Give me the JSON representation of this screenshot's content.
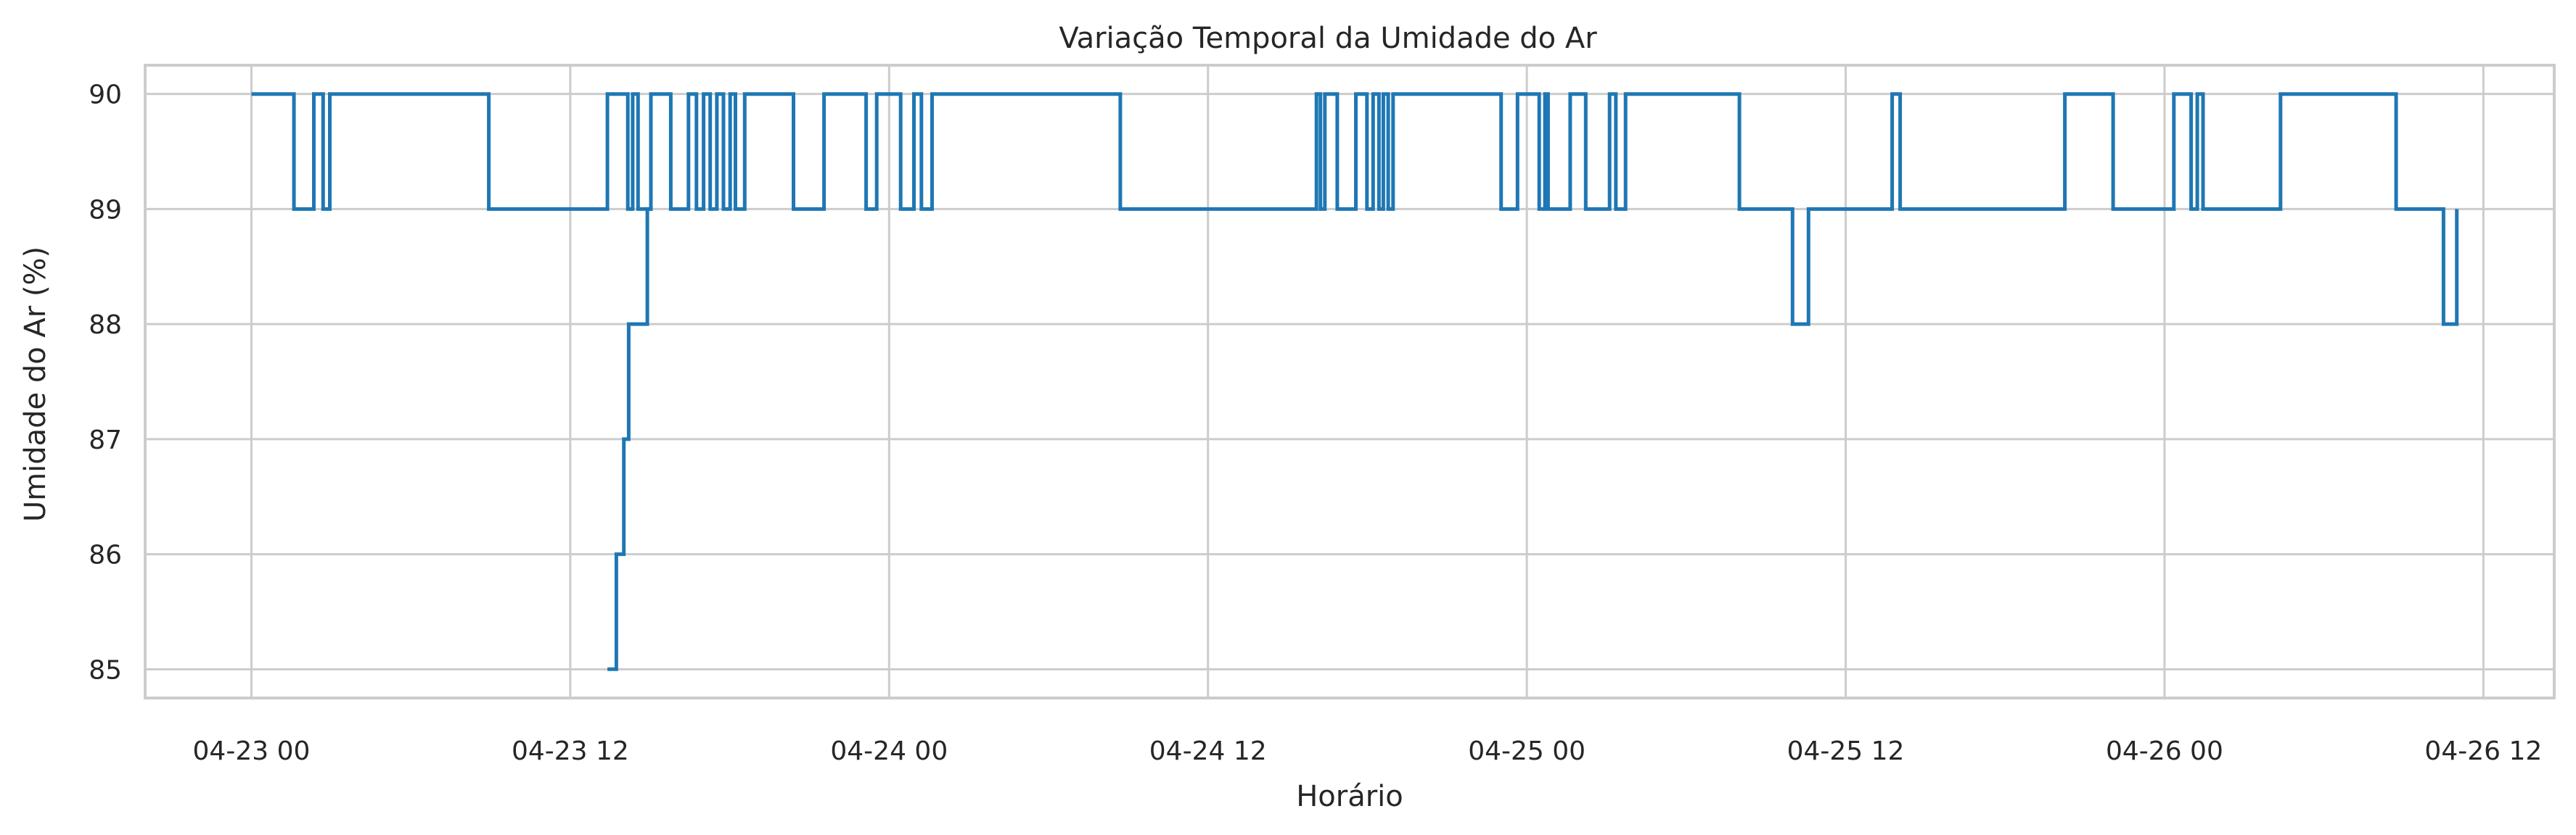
{
  "chart_data": {
    "type": "line",
    "title": "Variação Temporal da Umidade do Ar",
    "xlabel": "Horário",
    "ylabel": "Umidade do Ar (%)",
    "x_tick_labels": [
      "04-23 00",
      "04-23 12",
      "04-24 00",
      "04-24 12",
      "04-25 00",
      "04-25 12",
      "04-26 00",
      "04-26 12"
    ],
    "x_tick_times": [
      "2024-04-23T00:00",
      "2024-04-23T12:00",
      "2024-04-24T00:00",
      "2024-04-24T12:00",
      "2024-04-25T00:00",
      "2024-04-25T12:00",
      "2024-04-26T00:00",
      "2024-04-26T12:00"
    ],
    "y_ticks": [
      85,
      86,
      87,
      88,
      89,
      90
    ],
    "xlim": [
      "2024-04-22T20:00",
      "2024-04-26T14:40"
    ],
    "ylim": [
      84.75,
      90.25
    ],
    "grid": true,
    "color": "#1f77b4",
    "series": [
      {
        "step": "post",
        "points": [
          [
            "2024-04-23T00:00",
            90
          ],
          [
            "2024-04-23T01:36",
            89
          ],
          [
            "2024-04-23T02:21",
            90
          ],
          [
            "2024-04-23T02:42",
            89
          ],
          [
            "2024-04-23T02:57",
            90
          ],
          [
            "2024-04-23T08:56",
            89
          ],
          [
            "2024-04-23T13:24",
            90
          ],
          [
            "2024-04-23T14:10",
            89
          ],
          [
            "2024-04-23T14:21",
            90
          ],
          [
            "2024-04-23T14:33",
            89
          ],
          [
            "2024-04-23T15:02",
            90
          ],
          [
            "2024-04-23T15:47",
            89
          ],
          [
            "2024-04-23T16:27",
            90
          ],
          [
            "2024-04-23T16:45",
            89
          ],
          [
            "2024-04-23T17:01",
            90
          ],
          [
            "2024-04-23T17:16",
            89
          ],
          [
            "2024-04-23T17:31",
            90
          ],
          [
            "2024-04-23T17:46",
            89
          ],
          [
            "2024-04-23T18:01",
            90
          ],
          [
            "2024-04-23T18:13",
            89
          ],
          [
            "2024-04-23T18:34",
            90
          ],
          [
            "2024-04-23T20:24",
            89
          ],
          [
            "2024-04-23T21:33",
            90
          ],
          [
            "2024-04-23T23:08",
            89
          ],
          [
            "2024-04-23T23:32",
            90
          ],
          [
            "2024-04-24T00:26",
            89
          ],
          [
            "2024-04-24T00:56",
            90
          ],
          [
            "2024-04-24T01:13",
            89
          ],
          [
            "2024-04-24T01:37",
            90
          ],
          [
            "2024-04-24T08:42",
            89
          ],
          [
            "2024-04-24T16:05",
            90
          ],
          [
            "2024-04-24T16:14",
            89
          ],
          [
            "2024-04-24T16:24",
            90
          ],
          [
            "2024-04-24T16:52",
            89
          ],
          [
            "2024-04-24T17:34",
            90
          ],
          [
            "2024-04-24T17:59",
            89
          ],
          [
            "2024-04-24T18:13",
            90
          ],
          [
            "2024-04-24T18:26",
            89
          ],
          [
            "2024-04-24T18:36",
            90
          ],
          [
            "2024-04-24T18:47",
            89
          ],
          [
            "2024-04-24T18:58",
            90
          ],
          [
            "2024-04-24T23:02",
            89
          ],
          [
            "2024-04-24T23:39",
            90
          ],
          [
            "2024-04-25T00:28",
            89
          ],
          [
            "2024-04-25T00:41",
            90
          ],
          [
            "2024-04-25T00:48",
            89
          ],
          [
            "2024-04-25T01:38",
            90
          ],
          [
            "2024-04-25T02:13",
            89
          ],
          [
            "2024-04-25T03:07",
            90
          ],
          [
            "2024-04-25T03:21",
            89
          ],
          [
            "2024-04-25T03:43",
            90
          ],
          [
            "2024-04-25T08:00",
            89
          ],
          [
            "2024-04-25T10:00",
            88
          ],
          [
            "2024-04-25T10:36",
            89
          ],
          [
            "2024-04-25T13:45",
            90
          ],
          [
            "2024-04-25T14:03",
            89
          ],
          [
            "2024-04-25T20:15",
            90
          ],
          [
            "2024-04-25T22:04",
            89
          ],
          [
            "2024-04-26T00:21",
            90
          ],
          [
            "2024-04-26T01:00",
            89
          ],
          [
            "2024-04-26T01:14",
            90
          ],
          [
            "2024-04-26T01:27",
            89
          ],
          [
            "2024-04-26T04:22",
            90
          ],
          [
            "2024-04-26T08:43",
            89
          ],
          [
            "2024-04-26T10:30",
            88
          ],
          [
            "2024-04-26T11:00",
            89
          ]
        ]
      },
      {
        "step": "post",
        "points": [
          [
            "2024-04-23T13:24",
            85
          ],
          [
            "2024-04-23T13:44",
            86
          ],
          [
            "2024-04-23T14:01",
            87
          ],
          [
            "2024-04-23T14:12",
            88
          ],
          [
            "2024-04-23T14:54",
            89
          ],
          [
            "2024-04-23T15:02",
            90
          ]
        ]
      }
    ]
  }
}
